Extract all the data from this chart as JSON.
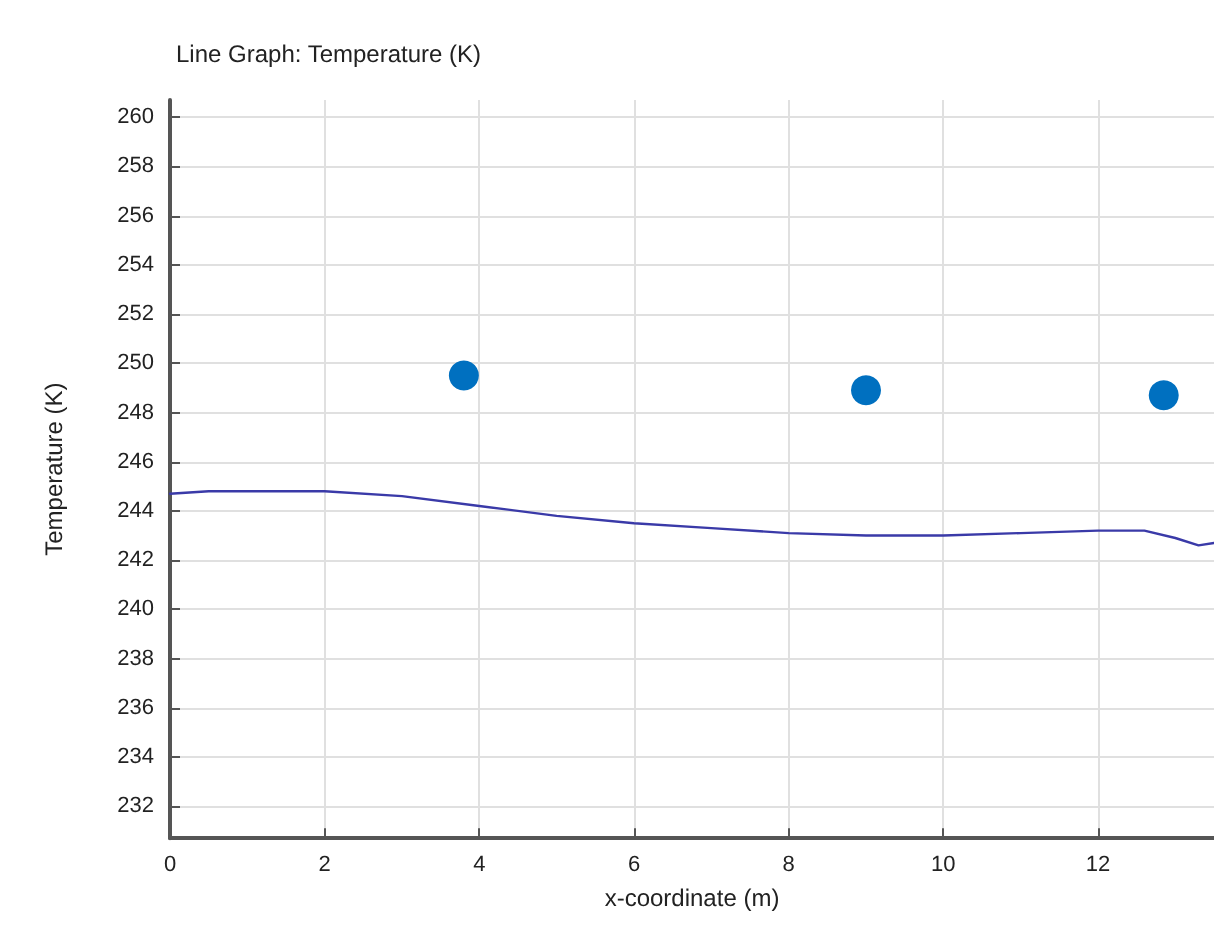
{
  "chart_data": {
    "type": "line",
    "title": "Line Graph: Temperature (K)",
    "xlabel": "x-coordinate (m)",
    "ylabel": "Temperature (K)",
    "xlim": [
      0,
      13.5
    ],
    "ylim": [
      230.7,
      260.7
    ],
    "xticks": [
      0,
      2,
      4,
      6,
      8,
      10,
      12
    ],
    "yticks": [
      232,
      234,
      236,
      238,
      240,
      242,
      244,
      246,
      248,
      250,
      252,
      254,
      256,
      258,
      260
    ],
    "grid": true,
    "series": [
      {
        "color": "#3a3aa8",
        "marker": "none",
        "x": [
          0,
          0.5,
          1,
          2,
          3,
          4,
          5,
          6,
          7,
          8,
          9,
          10,
          11,
          12,
          12.6,
          13,
          13.3,
          13.5
        ],
        "values": [
          244.7,
          244.8,
          244.8,
          244.8,
          244.6,
          244.2,
          243.8,
          243.5,
          243.3,
          243.1,
          243.0,
          243.0,
          243.1,
          243.2,
          243.2,
          242.9,
          242.6,
          242.7
        ]
      },
      {
        "type": "scatter",
        "color": "#0070c0",
        "marker": "circle",
        "x": [
          3.8,
          9.0,
          12.85
        ],
        "values": [
          249.5,
          248.9,
          248.7
        ]
      }
    ]
  }
}
